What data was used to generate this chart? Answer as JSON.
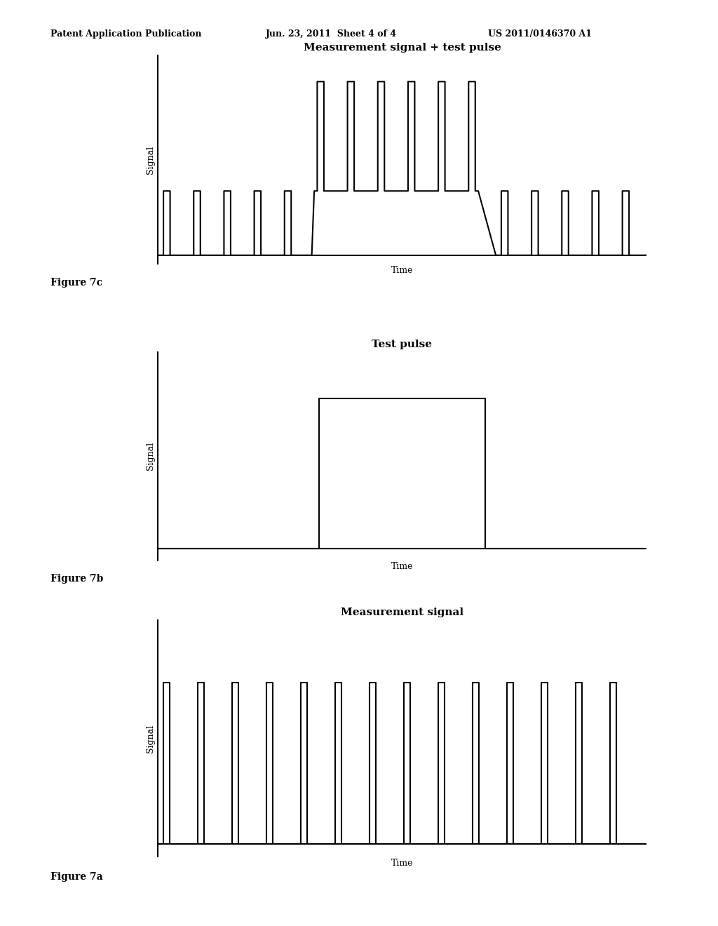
{
  "title_top_left": "Patent Application Publication",
  "title_top_mid": "Jun. 23, 2011  Sheet 4 of 4",
  "title_top_right": "US 2011/0146370 A1",
  "fig7c_title": "Measurement signal + test pulse",
  "fig7c_label": "Figure 7c",
  "fig7b_title": "Test pulse",
  "fig7b_label": "Figure 7b",
  "fig7a_title": "Measurement signal",
  "fig7a_label": "Figure 7a",
  "xlabel": "Time",
  "ylabel": "Signal",
  "bg_color": "#ffffff",
  "line_color": "#000000",
  "line_width": 1.5,
  "header_fontsize": 9,
  "title_fontsize": 11,
  "label_fontsize": 10,
  "axis_label_fontsize": 9
}
